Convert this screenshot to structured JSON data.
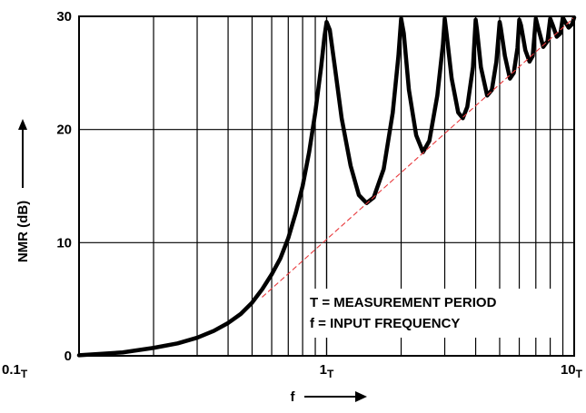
{
  "chart_data": {
    "type": "line",
    "x_scale": "log",
    "xlim": [
      0.1,
      10
    ],
    "ylim": [
      0,
      30
    ],
    "grid": true,
    "x_tick_labels": [
      {
        "x": 0.1,
        "base": "0.1",
        "sub": "T"
      },
      {
        "x": 1,
        "base": "1",
        "sub": "T"
      },
      {
        "x": 10,
        "base": "10",
        "sub": "T"
      }
    ],
    "y_ticks": [
      0,
      10,
      20,
      30
    ],
    "ylabel": "NMR (dB)",
    "xlabel": "f",
    "annotations": [
      "T = MEASUREMENT PERIOD",
      "f = INPUT FREQUENCY"
    ],
    "series": [
      {
        "style": "solid-thick",
        "color": "#000000",
        "points": [
          [
            0.1,
            0.05
          ],
          [
            0.15,
            0.3
          ],
          [
            0.2,
            0.7
          ],
          [
            0.25,
            1.1
          ],
          [
            0.3,
            1.6
          ],
          [
            0.35,
            2.2
          ],
          [
            0.4,
            2.9
          ],
          [
            0.45,
            3.7
          ],
          [
            0.5,
            4.7
          ],
          [
            0.55,
            5.9
          ],
          [
            0.6,
            7.2
          ],
          [
            0.65,
            8.6
          ],
          [
            0.7,
            10.4
          ],
          [
            0.75,
            12.6
          ],
          [
            0.8,
            15.0
          ],
          [
            0.85,
            18.0
          ],
          [
            0.9,
            21.5
          ],
          [
            0.95,
            25.5
          ],
          [
            0.98,
            28.2
          ],
          [
            1.0,
            29.5
          ],
          [
            1.03,
            28.8
          ],
          [
            1.08,
            25.5
          ],
          [
            1.15,
            21.0
          ],
          [
            1.25,
            16.8
          ],
          [
            1.35,
            14.2
          ],
          [
            1.45,
            13.5
          ],
          [
            1.55,
            14.0
          ],
          [
            1.7,
            16.5
          ],
          [
            1.85,
            21.5
          ],
          [
            1.95,
            26.5
          ],
          [
            2.0,
            29.8
          ],
          [
            2.05,
            28.5
          ],
          [
            2.15,
            23.5
          ],
          [
            2.3,
            19.5
          ],
          [
            2.45,
            18.0
          ],
          [
            2.6,
            19.0
          ],
          [
            2.8,
            23.0
          ],
          [
            2.95,
            27.5
          ],
          [
            3.0,
            29.8
          ],
          [
            3.05,
            28.5
          ],
          [
            3.2,
            24.5
          ],
          [
            3.4,
            21.5
          ],
          [
            3.55,
            21.0
          ],
          [
            3.7,
            22.0
          ],
          [
            3.9,
            25.5
          ],
          [
            4.0,
            29.7
          ],
          [
            4.05,
            28.8
          ],
          [
            4.2,
            25.5
          ],
          [
            4.45,
            23.0
          ],
          [
            4.65,
            23.5
          ],
          [
            4.85,
            26.0
          ],
          [
            5.0,
            29.5
          ],
          [
            5.05,
            29.0
          ],
          [
            5.25,
            26.5
          ],
          [
            5.5,
            24.5
          ],
          [
            5.7,
            25.0
          ],
          [
            5.9,
            27.2
          ],
          [
            6.0,
            29.7
          ],
          [
            6.1,
            29.2
          ],
          [
            6.35,
            27.0
          ],
          [
            6.6,
            26.0
          ],
          [
            6.8,
            26.5
          ],
          [
            7.0,
            29.8
          ],
          [
            7.15,
            29.0
          ],
          [
            7.5,
            27.3
          ],
          [
            7.8,
            27.8
          ],
          [
            8.0,
            29.8
          ],
          [
            8.2,
            29.2
          ],
          [
            8.5,
            28.2
          ],
          [
            8.8,
            28.5
          ],
          [
            9.0,
            29.9
          ],
          [
            9.2,
            29.5
          ],
          [
            9.5,
            29.0
          ],
          [
            9.8,
            29.3
          ],
          [
            10.0,
            29.9
          ]
        ]
      },
      {
        "style": "dashed",
        "color": "#e8393c",
        "points": [
          [
            0.55,
            5.2
          ],
          [
            10,
            29.9
          ]
        ]
      }
    ]
  }
}
